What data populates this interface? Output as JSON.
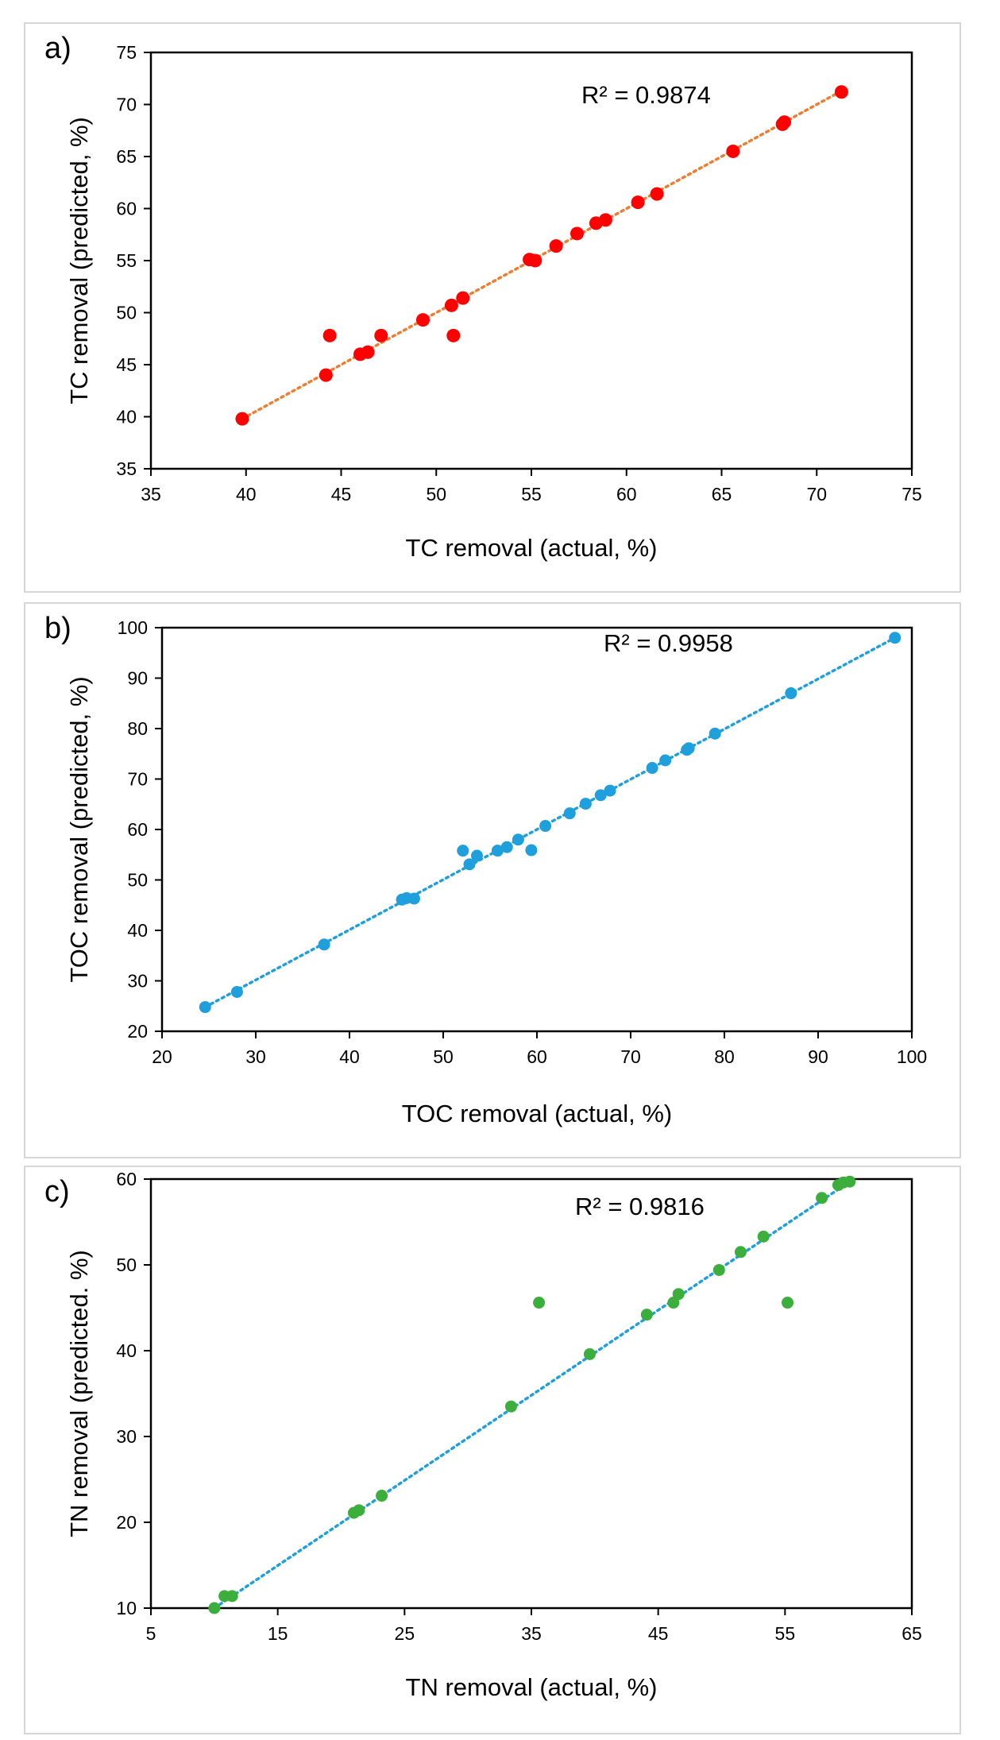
{
  "chart_data": [
    {
      "type": "scatter",
      "panel_label": "a)",
      "xlabel": "TC removal (actual, %)",
      "ylabel": "TC removal (predicted, %)",
      "xlim": [
        35,
        75
      ],
      "ylim": [
        35,
        75
      ],
      "xticks": [
        35,
        40,
        45,
        50,
        55,
        60,
        65,
        70,
        75
      ],
      "yticks": [
        35,
        40,
        45,
        50,
        55,
        60,
        65,
        70,
        75
      ],
      "r2_label": "R² = 0.9874",
      "trendline": {
        "x": [
          39.8,
          71.3
        ],
        "y": [
          39.8,
          71.3
        ]
      },
      "colors": {
        "marker": "#ff0000",
        "trendline": "#ed7d31"
      },
      "points": [
        [
          39.8,
          39.8
        ],
        [
          44.2,
          44.0
        ],
        [
          44.4,
          47.8
        ],
        [
          46.0,
          46.0
        ],
        [
          46.4,
          46.2
        ],
        [
          47.1,
          47.8
        ],
        [
          49.3,
          49.3
        ],
        [
          50.8,
          50.7
        ],
        [
          50.9,
          47.8
        ],
        [
          51.4,
          51.4
        ],
        [
          54.9,
          55.1
        ],
        [
          55.2,
          55.0
        ],
        [
          56.3,
          56.4
        ],
        [
          57.4,
          57.6
        ],
        [
          58.4,
          58.6
        ],
        [
          58.9,
          58.9
        ],
        [
          60.6,
          60.6
        ],
        [
          61.6,
          61.4
        ],
        [
          65.6,
          65.5
        ],
        [
          68.2,
          68.1
        ],
        [
          68.3,
          68.3
        ],
        [
          71.3,
          71.2
        ]
      ]
    },
    {
      "type": "scatter",
      "panel_label": "b)",
      "xlabel": "TOC removal (actual, %)",
      "ylabel": "TOC removal (predicted, %)",
      "xlim": [
        20,
        100
      ],
      "ylim": [
        20,
        100
      ],
      "xticks": [
        20,
        30,
        40,
        50,
        60,
        70,
        80,
        90,
        100
      ],
      "yticks": [
        20,
        30,
        40,
        50,
        60,
        70,
        80,
        90,
        100
      ],
      "r2_label": "R² = 0.9958",
      "trendline": {
        "x": [
          24.6,
          98.2
        ],
        "y": [
          24.8,
          98.0
        ]
      },
      "colors": {
        "marker": "#1f9fdc",
        "trendline": "#1f9fdc"
      },
      "points": [
        [
          24.6,
          24.8
        ],
        [
          28.0,
          27.8
        ],
        [
          37.3,
          37.2
        ],
        [
          45.6,
          46.1
        ],
        [
          46.1,
          46.4
        ],
        [
          46.9,
          46.3
        ],
        [
          52.1,
          55.8
        ],
        [
          52.8,
          53.1
        ],
        [
          53.6,
          54.8
        ],
        [
          55.8,
          55.8
        ],
        [
          56.8,
          56.5
        ],
        [
          58.0,
          58.0
        ],
        [
          59.4,
          55.9
        ],
        [
          60.9,
          60.7
        ],
        [
          63.5,
          63.2
        ],
        [
          65.2,
          65.1
        ],
        [
          66.8,
          66.8
        ],
        [
          67.8,
          67.7
        ],
        [
          72.3,
          72.2
        ],
        [
          73.7,
          73.7
        ],
        [
          76.0,
          75.8
        ],
        [
          76.2,
          76.1
        ],
        [
          79.0,
          79.0
        ],
        [
          87.1,
          87.0
        ],
        [
          98.2,
          98.0
        ]
      ]
    },
    {
      "type": "scatter",
      "panel_label": "c)",
      "xlabel": "TN removal (actual, %)",
      "ylabel": "TN removal (predicted. %)",
      "xlim": [
        5,
        65
      ],
      "ylim": [
        10,
        60
      ],
      "xticks": [
        5,
        15,
        25,
        35,
        45,
        55,
        65
      ],
      "yticks": [
        10,
        20,
        30,
        40,
        50,
        60
      ],
      "r2_label": "R² = 0.9816",
      "trendline": {
        "x": [
          10.0,
          60.1
        ],
        "y": [
          10.0,
          59.7
        ]
      },
      "colors": {
        "marker": "#3cae3c",
        "trendline": "#1f9fdc"
      },
      "points": [
        [
          10.0,
          10.0
        ],
        [
          10.8,
          11.4
        ],
        [
          11.4,
          11.4
        ],
        [
          21.0,
          21.1
        ],
        [
          21.4,
          21.4
        ],
        [
          23.2,
          23.1
        ],
        [
          33.4,
          33.5
        ],
        [
          35.6,
          45.6
        ],
        [
          39.6,
          39.6
        ],
        [
          44.1,
          44.2
        ],
        [
          46.2,
          45.6
        ],
        [
          46.6,
          46.6
        ],
        [
          49.8,
          49.4
        ],
        [
          51.5,
          51.5
        ],
        [
          53.3,
          53.3
        ],
        [
          55.2,
          45.6
        ],
        [
          57.9,
          57.8
        ],
        [
          59.2,
          59.3
        ],
        [
          59.6,
          59.6
        ],
        [
          60.1,
          59.7
        ]
      ]
    }
  ]
}
